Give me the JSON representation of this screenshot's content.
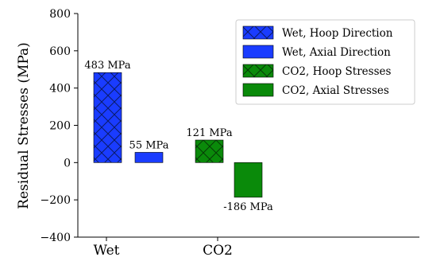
{
  "chart_data": {
    "type": "bar",
    "title": "",
    "xlabel": "",
    "ylabel": "Residual Stresses (MPa)",
    "ylim": [
      -400,
      800
    ],
    "yticks": [
      -400,
      -200,
      0,
      200,
      400,
      600,
      800
    ],
    "ytick_labels": [
      "−400",
      "−200",
      "0",
      "200",
      "400",
      "600",
      "800"
    ],
    "groups": [
      "Wet",
      "CO2"
    ],
    "legend_position": "top-right",
    "grid": false,
    "series": [
      {
        "name": "Wet, Hoop Direction",
        "group": "Wet",
        "value": 483,
        "label": "483 MPa",
        "color": "#1a3cff",
        "hatch": true
      },
      {
        "name": "Wet, Axial Direction",
        "group": "Wet",
        "value": 55,
        "label": "55 MPa",
        "color": "#1a3cff",
        "hatch": false
      },
      {
        "name": "CO2, Hoop Stresses",
        "group": "CO2",
        "value": 121,
        "label": "121 MPa",
        "color": "#0a8a0a",
        "hatch": true
      },
      {
        "name": "CO2, Axial Stresses",
        "group": "CO2",
        "value": -186,
        "label": "-186 MPa",
        "color": "#0a8a0a",
        "hatch": false
      }
    ]
  }
}
